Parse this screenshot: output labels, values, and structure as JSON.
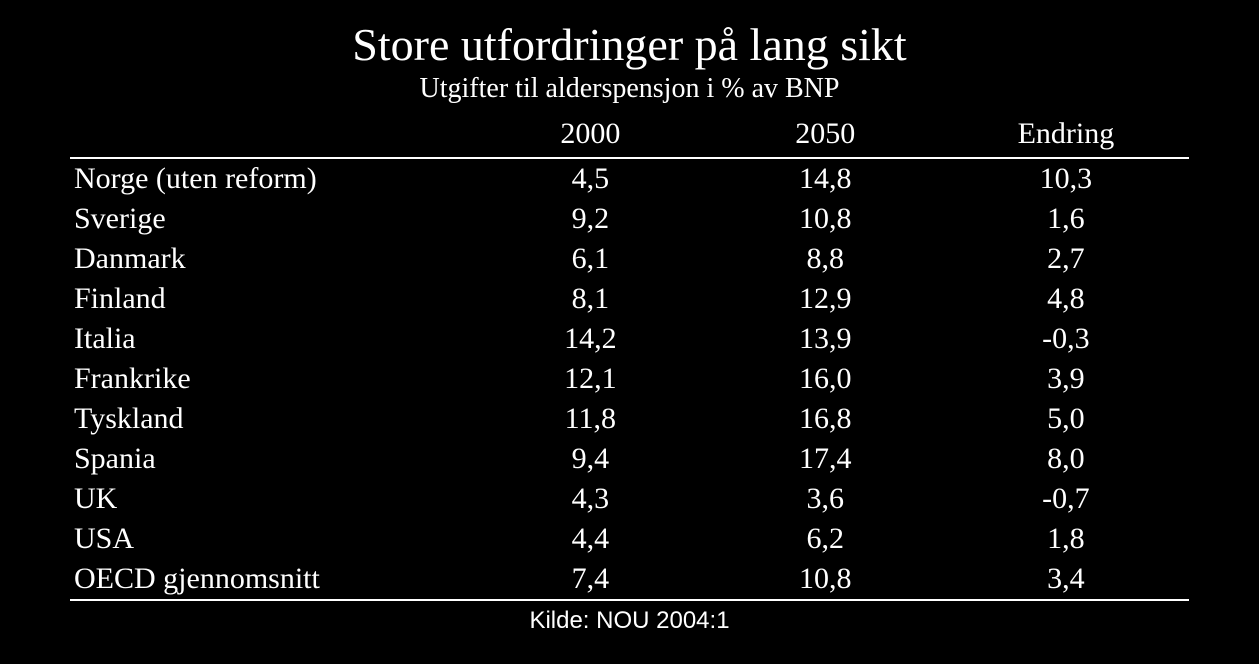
{
  "slide": {
    "title": "Store utfordringer på lang sikt",
    "subtitle": "Utgifter til alderspensjon i % av BNP",
    "source": "Kilde: NOU 2004:1",
    "background_color": "#000000",
    "text_color": "#ffffff",
    "rule_color": "#ffffff",
    "title_fontsize": 46,
    "subtitle_fontsize": 28,
    "table_fontsize": 30,
    "source_fontsize": 24,
    "font_family_title": "Times New Roman",
    "font_family_source": "Arial"
  },
  "table": {
    "type": "table",
    "columns": [
      "",
      "2000",
      "2050",
      "Endring"
    ],
    "column_alignment": [
      "left",
      "center",
      "center",
      "center"
    ],
    "column_widths_pct": [
      36,
      21,
      21,
      22
    ],
    "rows": [
      [
        "Norge (uten reform)",
        "4,5",
        "14,8",
        "10,3"
      ],
      [
        "Sverige",
        "9,2",
        "10,8",
        "1,6"
      ],
      [
        "Danmark",
        "6,1",
        "8,8",
        "2,7"
      ],
      [
        "Finland",
        "8,1",
        "12,9",
        "4,8"
      ],
      [
        "Italia",
        "14,2",
        "13,9",
        "-0,3"
      ],
      [
        "Frankrike",
        "12,1",
        "16,0",
        "3,9"
      ],
      [
        "Tyskland",
        "11,8",
        "16,8",
        "5,0"
      ],
      [
        "Spania",
        "9,4",
        "17,4",
        "8,0"
      ],
      [
        "UK",
        "4,3",
        "3,6",
        "-0,7"
      ],
      [
        "USA",
        "4,4",
        "6,2",
        "1,8"
      ],
      [
        "OECD gjennomsnitt",
        "7,4",
        "10,8",
        "3,4"
      ]
    ]
  }
}
